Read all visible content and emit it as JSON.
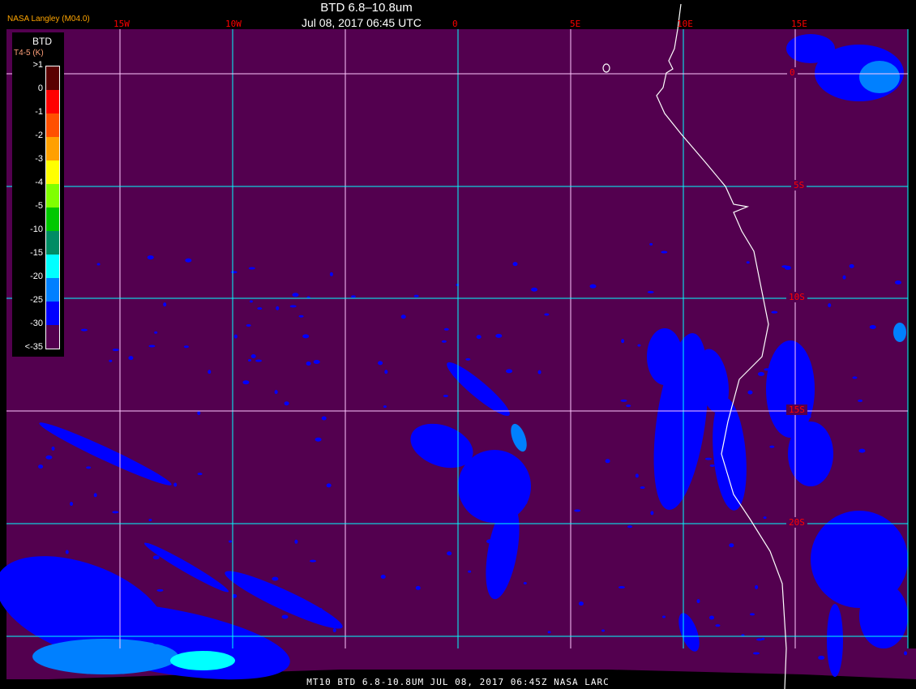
{
  "header": {
    "title": "BTD 6.8–10.8um",
    "timestamp": "Jul 08, 2017 06:45 UTC",
    "brand": "NASA Langley (M04.0)"
  },
  "map": {
    "background_color": "#53004f",
    "gridline_color": "#00ffff",
    "coastline_color": "#ffffff",
    "longitude_labels": [
      "15W",
      "10W",
      "5W",
      "0",
      "5E",
      "10E",
      "15E"
    ],
    "latitude_labels": [
      "0",
      "5S",
      "10S",
      "15S",
      "20S"
    ]
  },
  "legend": {
    "title": "BTD",
    "units": "T4-5 (K)",
    "labels": [
      ">1",
      "0",
      "-1",
      "-2",
      "-3",
      "-4",
      "-5",
      "-10",
      "-15",
      "-20",
      "-25",
      "-30",
      "<-35"
    ],
    "colors": [
      "#5a0000",
      "#ff0000",
      "#ff5000",
      "#ffa000",
      "#ffff00",
      "#80ff00",
      "#00c800",
      "#008c64",
      "#00ffff",
      "#0080ff",
      "#0000ff",
      "#53004f"
    ]
  },
  "footer": {
    "caption": "MT10  BTD 6.8-10.8UM   JUL 08, 2017 06:45Z   NASA LARC"
  }
}
